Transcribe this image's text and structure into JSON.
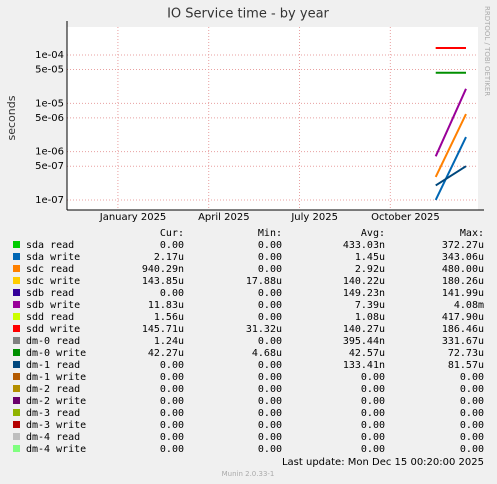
{
  "chart_data": {
    "type": "line",
    "title": "IO Service time - by year",
    "y_label": "seconds",
    "side_text": "RRDTOOL / TOBI OETIKER",
    "log_y": true,
    "grid": true,
    "x": [
      "2025-11",
      "2025-12"
    ],
    "xlim": [
      "2024-11",
      "2025-12"
    ],
    "xticks": [
      {
        "value": "2025-01",
        "label": "January 2025"
      },
      {
        "value": "2025-04",
        "label": "April 2025"
      },
      {
        "value": "2025-07",
        "label": "July 2025"
      },
      {
        "value": "2025-10",
        "label": "October 2025"
      }
    ],
    "ylim": [
      6.2e-08,
      0.00038
    ],
    "yticks": [
      {
        "value": 1e-07,
        "label": "1e-07"
      },
      {
        "value": 5e-07,
        "label": "5e-07"
      },
      {
        "value": 1e-06,
        "label": "1e-06"
      },
      {
        "value": 5e-06,
        "label": "5e-06"
      },
      {
        "value": 1e-05,
        "label": "1e-05"
      },
      {
        "value": 5e-05,
        "label": "5e-05"
      },
      {
        "value": 0.0001,
        "label": "1e-04"
      }
    ],
    "legend_headers": [
      "Cur:",
      "Min:",
      "Avg:",
      "Max:"
    ],
    "series": [
      {
        "name": "sda read",
        "color": "#00cc00",
        "values": [
          null,
          null
        ],
        "stats": [
          "0.00",
          "0.00",
          "433.03n",
          "372.27u"
        ]
      },
      {
        "name": "sda write",
        "color": "#0066b3",
        "values": [
          1e-07,
          2e-06
        ],
        "stats": [
          "2.17u",
          "0.00",
          "1.45u",
          "343.06u"
        ]
      },
      {
        "name": "sdc read",
        "color": "#ff8000",
        "values": [
          3e-07,
          6e-06
        ],
        "stats": [
          "940.29n",
          "0.00",
          "2.92u",
          "480.00u"
        ]
      },
      {
        "name": "sdc write",
        "color": "#ffcc00",
        "values": [
          0.00014,
          0.00014
        ],
        "stats": [
          "143.85u",
          "17.88u",
          "140.22u",
          "180.26u"
        ]
      },
      {
        "name": "sdb read",
        "color": "#330099",
        "values": [
          null,
          null
        ],
        "stats": [
          "0.00",
          "0.00",
          "149.23n",
          "141.99u"
        ]
      },
      {
        "name": "sdb write",
        "color": "#990099",
        "values": [
          8e-07,
          2e-05
        ],
        "stats": [
          "11.83u",
          "0.00",
          "7.39u",
          "4.08m"
        ]
      },
      {
        "name": "sdd read",
        "color": "#ccff00",
        "values": [
          null,
          null
        ],
        "stats": [
          "1.56u",
          "0.00",
          "1.08u",
          "417.90u"
        ]
      },
      {
        "name": "sdd write",
        "color": "#ff0000",
        "values": [
          0.00014,
          0.00014
        ],
        "stats": [
          "145.71u",
          "31.32u",
          "140.27u",
          "186.46u"
        ]
      },
      {
        "name": "dm-0 read",
        "color": "#808080",
        "values": [
          null,
          null
        ],
        "stats": [
          "1.24u",
          "0.00",
          "395.44n",
          "331.67u"
        ]
      },
      {
        "name": "dm-0 write",
        "color": "#008f00",
        "values": [
          4.3e-05,
          4.3e-05
        ],
        "stats": [
          "42.27u",
          "4.68u",
          "42.57u",
          "72.73u"
        ]
      },
      {
        "name": "dm-1 read",
        "color": "#00487d",
        "values": [
          2e-07,
          5e-07
        ],
        "stats": [
          "0.00",
          "0.00",
          "133.41n",
          "81.57u"
        ]
      },
      {
        "name": "dm-1 write",
        "color": "#b35a00",
        "values": [
          null,
          null
        ],
        "stats": [
          "0.00",
          "0.00",
          "0.00",
          "0.00"
        ]
      },
      {
        "name": "dm-2 read",
        "color": "#b38f00",
        "values": [
          null,
          null
        ],
        "stats": [
          "0.00",
          "0.00",
          "0.00",
          "0.00"
        ]
      },
      {
        "name": "dm-2 write",
        "color": "#6b006b",
        "values": [
          null,
          null
        ],
        "stats": [
          "0.00",
          "0.00",
          "0.00",
          "0.00"
        ]
      },
      {
        "name": "dm-3 read",
        "color": "#8fb300",
        "values": [
          null,
          null
        ],
        "stats": [
          "0.00",
          "0.00",
          "0.00",
          "0.00"
        ]
      },
      {
        "name": "dm-3 write",
        "color": "#b30000",
        "values": [
          null,
          null
        ],
        "stats": [
          "0.00",
          "0.00",
          "0.00",
          "0.00"
        ]
      },
      {
        "name": "dm-4 read",
        "color": "#bebebe",
        "values": [
          null,
          null
        ],
        "stats": [
          "0.00",
          "0.00",
          "0.00",
          "0.00"
        ]
      },
      {
        "name": "dm-4 write",
        "color": "#80ff80",
        "values": [
          null,
          null
        ],
        "stats": [
          "0.00",
          "0.00",
          "0.00",
          "0.00"
        ]
      }
    ],
    "last_update": "Last update:  Mon Dec 15 00:20:00 2025",
    "footer": "Munin 2.0.33-1"
  }
}
